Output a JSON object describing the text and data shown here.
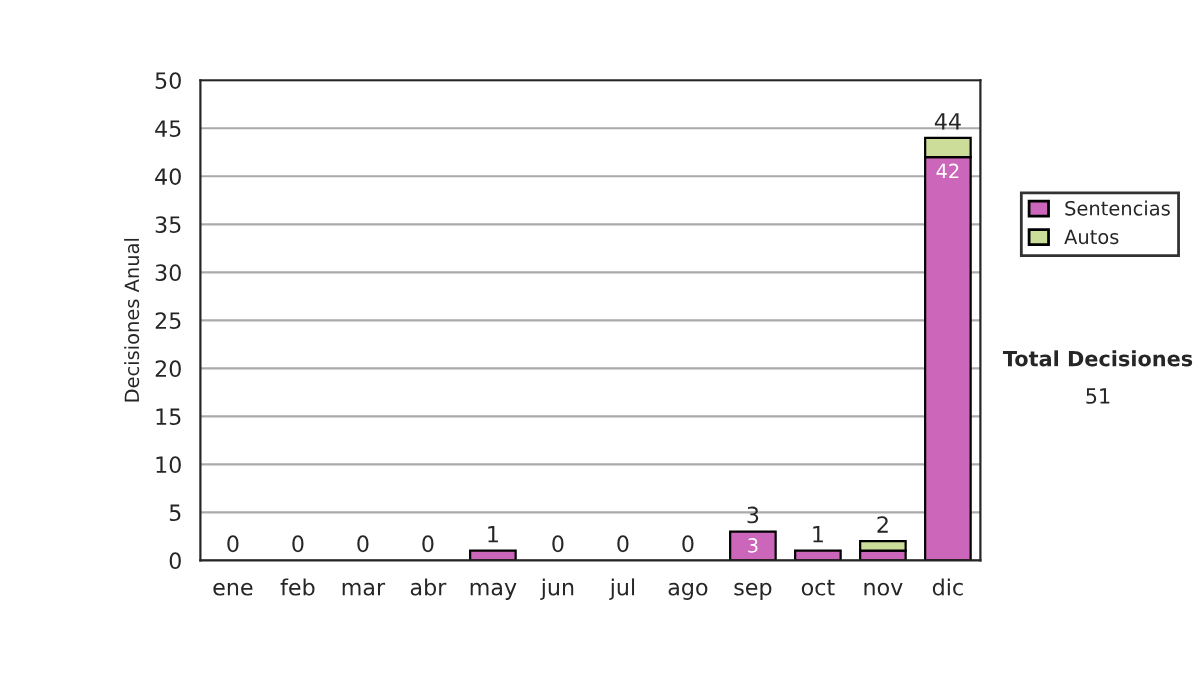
{
  "chart_data": {
    "type": "bar",
    "stacked": true,
    "ylabel": "Decisiones Anual",
    "categories": [
      "ene",
      "feb",
      "mar",
      "abr",
      "may",
      "jun",
      "jul",
      "ago",
      "sep",
      "oct",
      "nov",
      "dic"
    ],
    "series": [
      {
        "name": "Sentencias",
        "color": "#cc66bb",
        "values": [
          0,
          0,
          0,
          0,
          1,
          0,
          0,
          0,
          3,
          1,
          1,
          42
        ],
        "value_labels": [
          null,
          null,
          null,
          null,
          null,
          null,
          null,
          null,
          "3",
          null,
          null,
          "42"
        ]
      },
      {
        "name": "Autos",
        "color": "#ccdd99",
        "values": [
          0,
          0,
          0,
          0,
          0,
          0,
          0,
          0,
          0,
          0,
          1,
          2
        ]
      }
    ],
    "totals": [
      "0",
      "0",
      "0",
      "0",
      "1",
      "0",
      "0",
      "0",
      "3",
      "1",
      "2",
      "44"
    ],
    "ylim": [
      0,
      50
    ],
    "yticks": [
      0,
      5,
      10,
      15,
      20,
      25,
      30,
      35,
      40,
      45,
      50
    ],
    "grid": "y",
    "legend": "right",
    "annotations": [
      "Total Decisiones",
      "51"
    ]
  }
}
